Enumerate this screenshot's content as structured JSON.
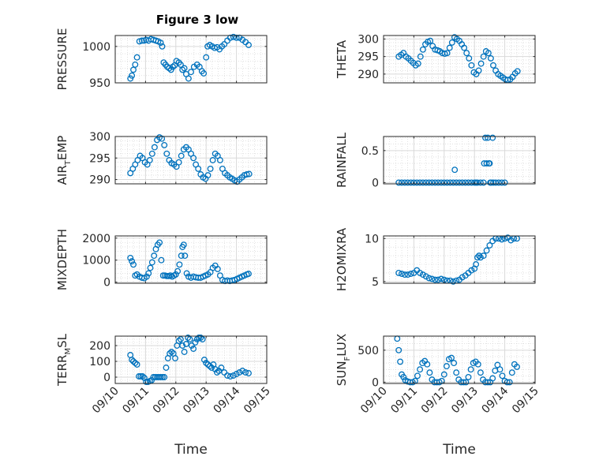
{
  "figure": {
    "title": "Figure 3 low",
    "xlabel": "Time",
    "marker_color": "#0072BD"
  },
  "chart_data": [
    {
      "type": "scatter",
      "title": "Figure 3 low",
      "ylabel": "PRESSURE",
      "ylabel_main": "PRESSURE",
      "ylabel_sub": "",
      "ylabel_end": "",
      "ylim": [
        950,
        1015
      ],
      "yticks": [
        950,
        1000
      ],
      "x": [
        10.5,
        10.55,
        10.6,
        10.66,
        10.72,
        10.8,
        10.88,
        10.95,
        11.02,
        11.1,
        11.18,
        11.26,
        11.34,
        11.42,
        11.5,
        11.55,
        11.6,
        11.66,
        11.72,
        11.78,
        11.84,
        11.9,
        11.96,
        12.02,
        12.1,
        12.16,
        12.22,
        12.28,
        12.34,
        12.42,
        12.5,
        12.6,
        12.7,
        12.78,
        12.86,
        12.92,
        13.0,
        13.05,
        13.12,
        13.2,
        13.28,
        13.36,
        13.44,
        13.52,
        13.6,
        13.7,
        13.8,
        13.9,
        14.0,
        14.1,
        14.2,
        14.3,
        14.4
      ],
      "y": [
        956,
        960,
        968,
        975,
        985,
        1007,
        1008,
        1008,
        1009,
        1008,
        1010,
        1009,
        1008,
        1007,
        1005,
        1000,
        978,
        975,
        972,
        970,
        968,
        972,
        974,
        980,
        978,
        975,
        968,
        970,
        962,
        956,
        965,
        972,
        975,
        972,
        966,
        963,
        985,
        1000,
        1002,
        1000,
        998,
        999,
        996,
        1000,
        1003,
        1008,
        1012,
        1013,
        1012,
        1012,
        1009,
        1006,
        1002
      ]
    },
    {
      "type": "scatter",
      "ylabel": "THETA",
      "ylabel_main": "THETA",
      "ylabel_sub": "",
      "ylabel_end": "",
      "ylim": [
        287.5,
        301
      ],
      "yticks": [
        290,
        295,
        300
      ],
      "x": [
        10.5,
        10.58,
        10.66,
        10.74,
        10.82,
        10.9,
        10.98,
        11.06,
        11.14,
        11.22,
        11.3,
        11.38,
        11.46,
        11.54,
        11.62,
        11.7,
        11.78,
        11.86,
        11.94,
        12.02,
        12.1,
        12.18,
        12.26,
        12.34,
        12.42,
        12.5,
        12.58,
        12.66,
        12.74,
        12.82,
        12.9,
        12.98,
        13.06,
        13.14,
        13.22,
        13.3,
        13.38,
        13.46,
        13.54,
        13.62,
        13.7,
        13.78,
        13.86,
        13.94,
        14.02,
        14.1,
        14.18,
        14.26,
        14.34,
        14.42
      ],
      "y": [
        295,
        295.5,
        296,
        295,
        294.5,
        293.8,
        293.2,
        292.5,
        293,
        295,
        297,
        298.5,
        299.2,
        299.5,
        298,
        297,
        296.8,
        296.5,
        296,
        295.8,
        296,
        297.5,
        299,
        300.5,
        300,
        299.5,
        298.5,
        297.5,
        296,
        294.5,
        292.5,
        290.5,
        290,
        291,
        293,
        295,
        296.5,
        296,
        294.5,
        292.5,
        291,
        290,
        289.5,
        289,
        288.5,
        288.3,
        288.5,
        289.2,
        290.2,
        290.8
      ]
    },
    {
      "type": "scatter",
      "ylabel": "AIR_TEMP",
      "ylabel_main": "AIR",
      "ylabel_sub": "T",
      "ylabel_end": "EMP",
      "ylim": [
        289,
        300
      ],
      "yticks": [
        290,
        295,
        300
      ],
      "x": [
        10.5,
        10.58,
        10.66,
        10.74,
        10.82,
        10.9,
        10.98,
        11.06,
        11.14,
        11.22,
        11.3,
        11.38,
        11.46,
        11.54,
        11.62,
        11.7,
        11.78,
        11.86,
        11.94,
        12.02,
        12.1,
        12.18,
        12.26,
        12.34,
        12.42,
        12.5,
        12.58,
        12.66,
        12.74,
        12.82,
        12.9,
        12.98,
        13.06,
        13.14,
        13.22,
        13.3,
        13.38,
        13.46,
        13.54,
        13.62,
        13.7,
        13.78,
        13.86,
        13.94,
        14.02,
        14.1,
        14.18,
        14.26,
        14.34,
        14.42
      ],
      "y": [
        291.5,
        292.5,
        293.5,
        294.5,
        295.5,
        295,
        294,
        293.5,
        294.5,
        296,
        297.5,
        299.2,
        299.8,
        299.5,
        298,
        296,
        294.5,
        293.8,
        293.5,
        293,
        294,
        295.5,
        297,
        297.5,
        297,
        296,
        295,
        293.5,
        292.5,
        291.2,
        290.5,
        290.2,
        291,
        292.5,
        294.5,
        296,
        295.5,
        294.5,
        292.5,
        291.5,
        291,
        290.5,
        290.2,
        289.8,
        289.5,
        290,
        290.5,
        291,
        291.2,
        291.3
      ]
    },
    {
      "type": "scatter",
      "ylabel": "RAINFALL",
      "ylabel_main": "RAINFALL",
      "ylabel_sub": "",
      "ylabel_end": "",
      "ylim": [
        -0.02,
        0.72
      ],
      "yticks": [
        0,
        0.5
      ],
      "x": [
        10.5,
        10.6,
        10.7,
        10.8,
        10.9,
        11.0,
        11.1,
        11.2,
        11.3,
        11.4,
        11.5,
        11.6,
        11.7,
        11.8,
        11.9,
        12.0,
        12.1,
        12.2,
        12.3,
        12.35,
        12.4,
        12.5,
        12.6,
        12.7,
        12.8,
        12.9,
        13.0,
        13.05,
        13.1,
        13.2,
        13.3,
        13.32,
        13.36,
        13.4,
        13.44,
        13.48,
        13.5,
        13.52,
        13.55,
        13.6,
        13.62,
        13.7,
        13.8,
        13.9,
        14.0
      ],
      "y": [
        0,
        0,
        0,
        0,
        0,
        0,
        0,
        0,
        0,
        0,
        0,
        0,
        0,
        0,
        0,
        0,
        0,
        0,
        0,
        0.2,
        0,
        0,
        0,
        0,
        0,
        0,
        0,
        0,
        0,
        0,
        0,
        0.3,
        0.7,
        0.3,
        0.7,
        0.3,
        0.3,
        0,
        0,
        0.7,
        0,
        0,
        0,
        0,
        0
      ]
    },
    {
      "type": "scatter",
      "ylabel": "MIXDEPTH",
      "ylabel_main": "MIXDEPTH",
      "ylabel_sub": "",
      "ylabel_end": "",
      "ylim": [
        -50,
        2100
      ],
      "yticks": [
        0,
        1000,
        2000
      ],
      "x": [
        10.5,
        10.55,
        10.6,
        10.66,
        10.72,
        10.8,
        10.88,
        10.96,
        11.04,
        11.1,
        11.16,
        11.22,
        11.28,
        11.34,
        11.4,
        11.46,
        11.52,
        11.58,
        11.64,
        11.7,
        11.76,
        11.82,
        11.88,
        11.94,
        12.0,
        12.06,
        12.12,
        12.18,
        12.22,
        12.26,
        12.3,
        12.36,
        12.42,
        12.5,
        12.58,
        12.66,
        12.74,
        12.82,
        12.9,
        12.98,
        13.06,
        13.14,
        13.22,
        13.3,
        13.38,
        13.46,
        13.54,
        13.62,
        13.7,
        13.78,
        13.86,
        13.94,
        14.02,
        14.1,
        14.18,
        14.26,
        14.34,
        14.4
      ],
      "y": [
        1100,
        950,
        800,
        300,
        350,
        250,
        200,
        180,
        250,
        400,
        650,
        900,
        1200,
        1500,
        1700,
        1800,
        1000,
        300,
        300,
        280,
        280,
        300,
        250,
        300,
        350,
        500,
        800,
        1200,
        1600,
        1700,
        1200,
        400,
        250,
        200,
        250,
        220,
        200,
        200,
        250,
        300,
        350,
        450,
        650,
        750,
        600,
        300,
        100,
        50,
        80,
        50,
        80,
        100,
        150,
        200,
        250,
        300,
        350,
        380
      ]
    },
    {
      "type": "scatter",
      "ylabel": "H2OMIXRA",
      "ylabel_main": "H2OMIXRA",
      "ylabel_sub": "",
      "ylabel_end": "",
      "ylim": [
        4.8,
        10.3
      ],
      "yticks": [
        5,
        10
      ],
      "x": [
        10.5,
        10.6,
        10.7,
        10.8,
        10.9,
        11.0,
        11.1,
        11.2,
        11.3,
        11.4,
        11.5,
        11.6,
        11.7,
        11.8,
        11.9,
        12.0,
        12.1,
        12.2,
        12.3,
        12.4,
        12.5,
        12.6,
        12.7,
        12.8,
        12.9,
        13.0,
        13.05,
        13.1,
        13.15,
        13.2,
        13.3,
        13.4,
        13.5,
        13.6,
        13.7,
        13.8,
        13.9,
        14.0,
        14.1,
        14.2,
        14.3,
        14.4
      ],
      "y": [
        6,
        5.9,
        5.8,
        5.8,
        5.9,
        6,
        6.3,
        6,
        5.8,
        5.6,
        5.4,
        5.3,
        5.2,
        5.2,
        5.3,
        5.2,
        5.1,
        5.1,
        5.0,
        5.1,
        5.2,
        5.5,
        5.7,
        6,
        6.3,
        6.5,
        7,
        7.8,
        8,
        7.8,
        8,
        8.6,
        9.2,
        9.7,
        10,
        10,
        9.9,
        10,
        10.1,
        9.8,
        10,
        10
      ]
    },
    {
      "type": "scatter",
      "ylabel": "TERR_MSL",
      "ylabel_main": "TERR",
      "ylabel_sub": "M",
      "ylabel_end": "SL",
      "ylim": [
        -40,
        260
      ],
      "yticks": [
        0,
        100,
        200
      ],
      "x": [
        10.5,
        10.55,
        10.6,
        10.66,
        10.72,
        10.78,
        10.84,
        10.9,
        10.96,
        11.02,
        11.08,
        11.14,
        11.2,
        11.26,
        11.32,
        11.38,
        11.44,
        11.5,
        11.56,
        11.62,
        11.68,
        11.74,
        11.8,
        11.86,
        11.92,
        11.98,
        12.04,
        12.1,
        12.16,
        12.22,
        12.28,
        12.34,
        12.4,
        12.46,
        12.52,
        12.58,
        12.64,
        12.7,
        12.76,
        12.82,
        12.88,
        12.94,
        13.0,
        13.06,
        13.12,
        13.18,
        13.24,
        13.3,
        13.36,
        13.42,
        13.5,
        13.6,
        13.7,
        13.8,
        13.9,
        14.0,
        14.1,
        14.2,
        14.3,
        14.4
      ],
      "y": [
        140,
        110,
        100,
        90,
        80,
        5,
        5,
        5,
        -5,
        -30,
        -30,
        -25,
        -20,
        0,
        0,
        0,
        0,
        0,
        0,
        0,
        60,
        120,
        150,
        160,
        150,
        120,
        200,
        230,
        240,
        200,
        160,
        210,
        250,
        240,
        200,
        180,
        220,
        240,
        250,
        250,
        240,
        110,
        90,
        80,
        70,
        60,
        80,
        50,
        30,
        40,
        60,
        30,
        10,
        5,
        10,
        20,
        30,
        40,
        30,
        25
      ]
    },
    {
      "type": "scatter",
      "ylabel": "SUN_FLUX",
      "ylabel_main": "SUN",
      "ylabel_sub": "F",
      "ylabel_end": "LUX",
      "ylim": [
        -20,
        720
      ],
      "yticks": [
        0,
        500
      ],
      "x": [
        10.45,
        10.5,
        10.55,
        10.6,
        10.66,
        10.72,
        10.8,
        10.88,
        10.96,
        11.04,
        11.12,
        11.2,
        11.28,
        11.36,
        11.44,
        11.52,
        11.6,
        11.68,
        11.76,
        11.84,
        11.92,
        12.0,
        12.08,
        12.16,
        12.24,
        12.32,
        12.4,
        12.48,
        12.56,
        12.64,
        12.72,
        12.8,
        12.88,
        12.96,
        13.04,
        13.12,
        13.2,
        13.28,
        13.36,
        13.44,
        13.52,
        13.6,
        13.68,
        13.76,
        13.84,
        13.92,
        14.0,
        14.08,
        14.16,
        14.24,
        14.32,
        14.4
      ],
      "y": [
        680,
        500,
        320,
        120,
        80,
        30,
        10,
        0,
        0,
        20,
        100,
        200,
        300,
        330,
        280,
        150,
        40,
        0,
        0,
        0,
        20,
        120,
        250,
        360,
        380,
        300,
        150,
        40,
        0,
        0,
        0,
        80,
        200,
        300,
        320,
        280,
        150,
        40,
        0,
        0,
        0,
        60,
        180,
        270,
        200,
        100,
        20,
        0,
        0,
        150,
        280,
        240
      ]
    }
  ],
  "x_axis": {
    "xlim": [
      10,
      15
    ],
    "ticks": [
      10,
      11,
      12,
      13,
      14,
      15
    ],
    "tick_labels": [
      "09/10",
      "09/11",
      "09/12",
      "09/13",
      "09/14",
      "09/15"
    ]
  }
}
